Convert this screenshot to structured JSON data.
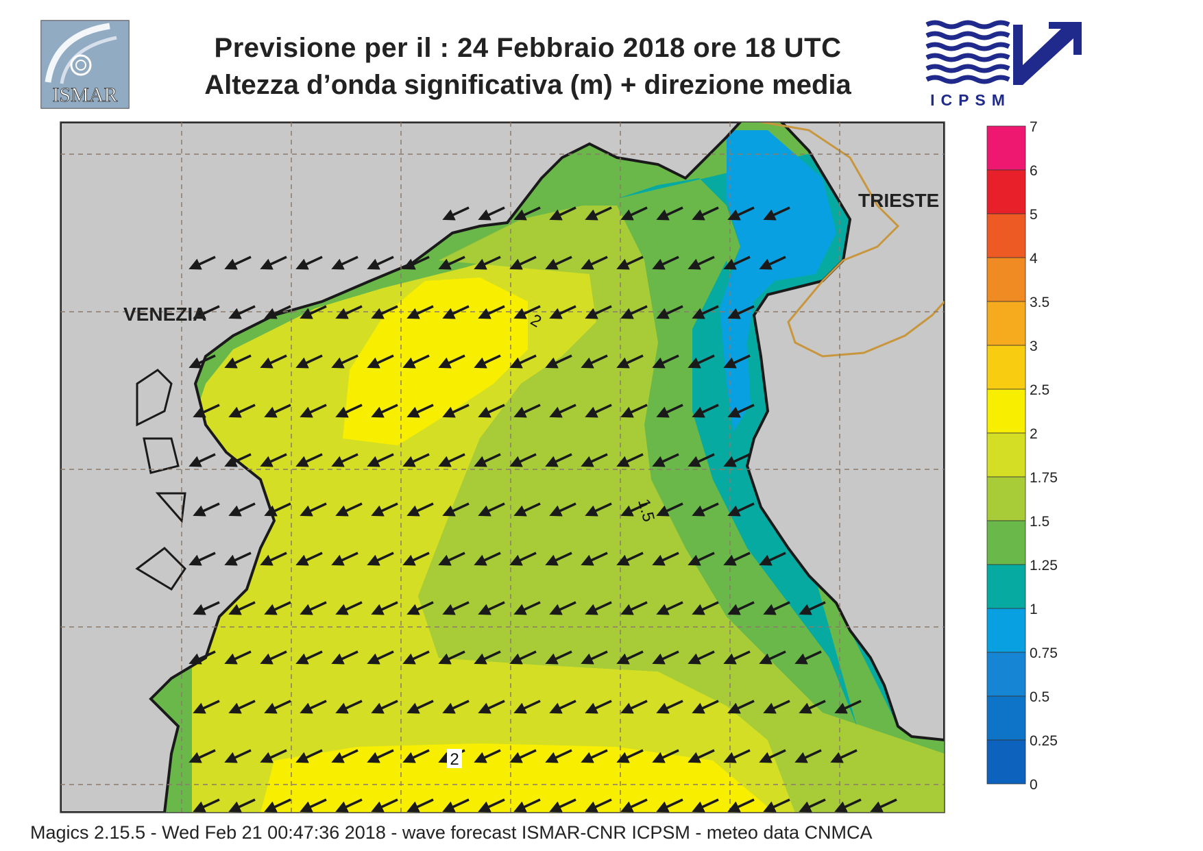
{
  "header": {
    "title_line1": "Previsione per il  :  24  Febbraio 2018   ore 18 UTC",
    "title_line2": "Altezza d’onda significativa (m) + direzione media"
  },
  "logos": {
    "left": {
      "text": "ISMAR"
    },
    "right": {
      "text": "ICPSM"
    }
  },
  "map": {
    "city_labels": [
      "VENEZIA",
      "TRIESTE"
    ],
    "contour_labels": [
      "2",
      "1.5",
      "2"
    ],
    "arrow_direction": "toward south-west",
    "colors": {
      "land": "#c8c8c8",
      "coast": "#1a1a1a",
      "border": "#c8963c",
      "grid": "#8a7a6a"
    }
  },
  "legend": {
    "labels": [
      "7",
      "6",
      "5",
      "4",
      "3.5",
      "3",
      "2.5",
      "2",
      "1.75",
      "1.5",
      "1.25",
      "1",
      "0.75",
      "0.5",
      "0.25",
      "0"
    ],
    "colors": [
      "#ee1870",
      "#e8202a",
      "#ee5a24",
      "#f08a22",
      "#f6aa1e",
      "#f8cc10",
      "#f8ee00",
      "#d4de24",
      "#a8cc38",
      "#6ab84a",
      "#06aaa0",
      "#08a0e0",
      "#1686d4",
      "#0e74c8",
      "#0c62bc"
    ]
  },
  "footer": {
    "text": "Magics 2.15.5 - Wed Feb 21 00:47:36 2018 - wave forecast  ISMAR-CNR  ICPSM - meteo data   CNMCA"
  }
}
